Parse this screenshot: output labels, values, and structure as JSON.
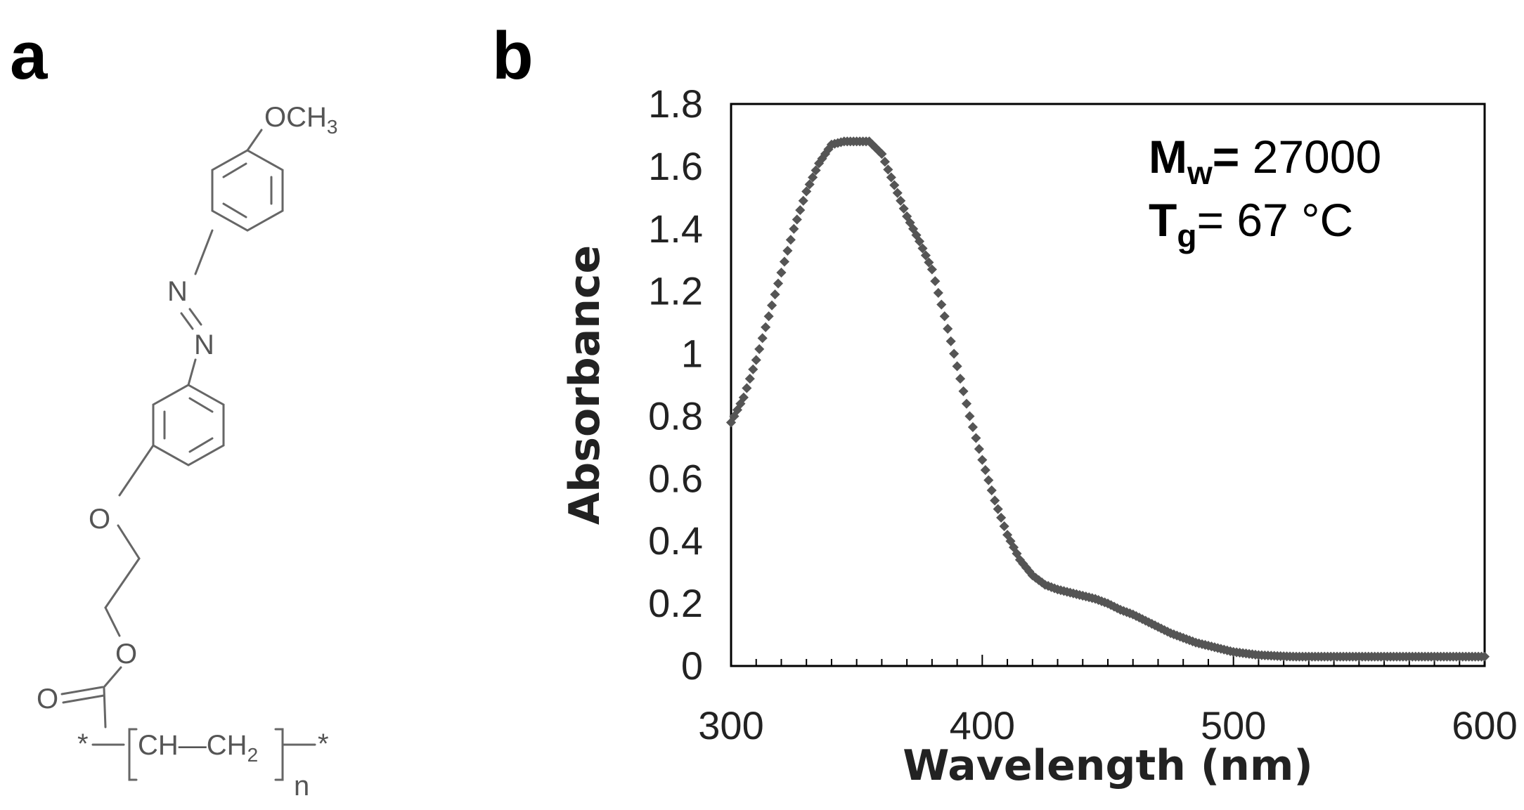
{
  "panels": {
    "a": {
      "label": "a"
    },
    "b": {
      "label": "b"
    }
  },
  "structure": {
    "top_group": "OCH",
    "top_group_sub": "3",
    "azo_n1": "N",
    "azo_n2": "N",
    "ether_o": "O",
    "ester_o": "O",
    "carbonyl_o": "O",
    "backbone_ch": "CH",
    "backbone_dash": "—",
    "backbone_ch2": "CH",
    "backbone_ch2_sub": "2",
    "repeat_n": "n",
    "end_left": "*",
    "end_right": "*"
  },
  "annotation": {
    "mw_symbol": "M",
    "mw_sub": "w",
    "mw_eq": "=",
    "mw_value": " 27000",
    "tg_symbol": "T",
    "tg_sub": "g",
    "tg_text": "= 67 °C"
  },
  "colors": {
    "series": "#555555",
    "axis": "#000000"
  },
  "chart_data": {
    "type": "scatter",
    "title": "",
    "xlabel": "Wavelength (nm)",
    "ylabel": "Absorbance",
    "xlim": [
      300,
      600
    ],
    "ylim": [
      0,
      1.8
    ],
    "xticks": [
      "300",
      "400",
      "500",
      "600"
    ],
    "yticks": [
      "0",
      "0.2",
      "0.4",
      "0.6",
      "0.8",
      "1",
      "1.2",
      "1.4",
      "1.6",
      "1.8"
    ],
    "grid": false,
    "series": [
      {
        "name": "Absorbance",
        "x": [
          300,
          305,
          310,
          315,
          320,
          325,
          330,
          335,
          340,
          345,
          350,
          355,
          360,
          365,
          370,
          375,
          380,
          385,
          390,
          395,
          400,
          405,
          410,
          415,
          420,
          425,
          430,
          435,
          440,
          445,
          450,
          455,
          460,
          465,
          470,
          475,
          480,
          485,
          490,
          495,
          500,
          505,
          510,
          515,
          520,
          525,
          530,
          535,
          540,
          545,
          550,
          555,
          560,
          565,
          570,
          575,
          580,
          585,
          590,
          595,
          600
        ],
        "y": [
          0.78,
          0.86,
          0.98,
          1.12,
          1.26,
          1.4,
          1.52,
          1.61,
          1.67,
          1.68,
          1.68,
          1.68,
          1.64,
          1.54,
          1.44,
          1.36,
          1.27,
          1.12,
          0.96,
          0.8,
          0.66,
          0.53,
          0.42,
          0.34,
          0.29,
          0.26,
          0.245,
          0.235,
          0.225,
          0.215,
          0.2,
          0.18,
          0.165,
          0.145,
          0.125,
          0.105,
          0.09,
          0.075,
          0.065,
          0.055,
          0.045,
          0.04,
          0.035,
          0.033,
          0.031,
          0.03,
          0.03,
          0.03,
          0.03,
          0.03,
          0.03,
          0.03,
          0.03,
          0.03,
          0.03,
          0.03,
          0.03,
          0.03,
          0.03,
          0.03,
          0.03
        ]
      }
    ]
  }
}
